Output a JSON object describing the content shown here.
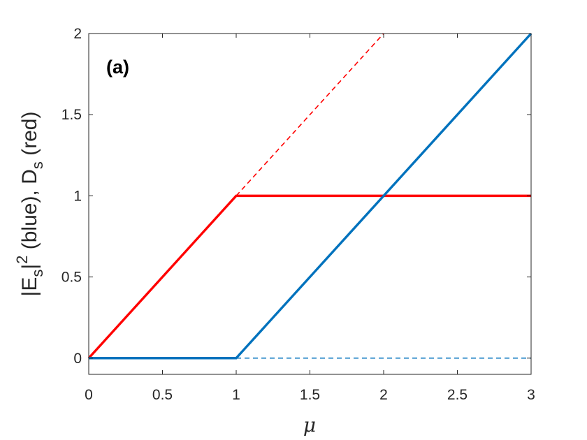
{
  "chart_data": {
    "type": "line",
    "panel_label": "(a)",
    "xlabel": "μ",
    "ylabel": {
      "part1": "|E",
      "sub1": "s",
      "part2": "|",
      "sup": "2",
      "part3": " (blue), D",
      "sub2": "s",
      "part4": " (red)"
    },
    "xlim": [
      0,
      3
    ],
    "ylim": [
      -0.1,
      2
    ],
    "xticks": [
      0,
      0.5,
      1,
      1.5,
      2,
      2.5,
      3
    ],
    "xtick_labels": [
      "0",
      "0.5",
      "1",
      "1.5",
      "2",
      "2.5",
      "3"
    ],
    "yticks": [
      0,
      0.5,
      1,
      1.5,
      2
    ],
    "ytick_labels": [
      "0",
      "0.5",
      "1",
      "1.5",
      "2"
    ],
    "grid": false,
    "series": [
      {
        "color": "#ff0000",
        "style": "dashed",
        "x": [
          1,
          2
        ],
        "y": [
          1,
          2
        ]
      },
      {
        "color": "#0072bd",
        "style": "dashed",
        "x": [
          1,
          3
        ],
        "y": [
          0,
          0
        ]
      },
      {
        "color": "#ff0000",
        "style": "solid",
        "x": [
          0,
          1,
          3
        ],
        "y": [
          0,
          1,
          1
        ]
      },
      {
        "color": "#0072bd",
        "style": "solid",
        "x": [
          0,
          1,
          3
        ],
        "y": [
          0,
          0,
          2
        ]
      }
    ]
  }
}
